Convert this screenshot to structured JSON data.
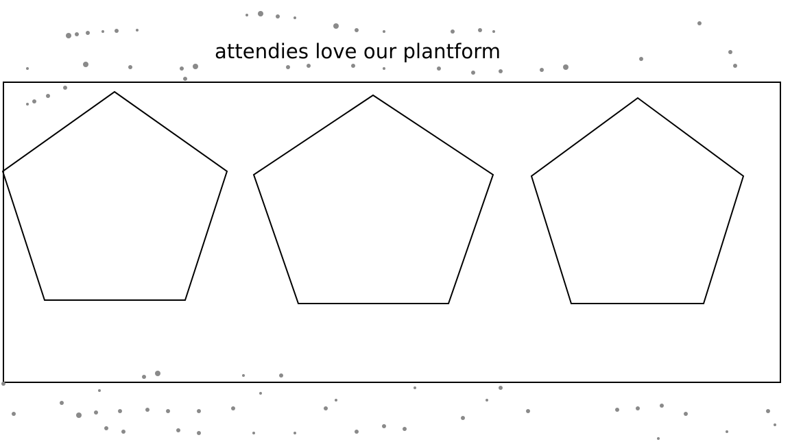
{
  "title": "attendies love our plantform",
  "shapes": [
    {
      "type": "pentagon",
      "label": ""
    },
    {
      "type": "pentagon",
      "label": ""
    },
    {
      "type": "pentagon",
      "label": ""
    }
  ],
  "colors": {
    "stroke": "#000000",
    "background": "#ffffff",
    "noise": "#8a8a8a"
  }
}
